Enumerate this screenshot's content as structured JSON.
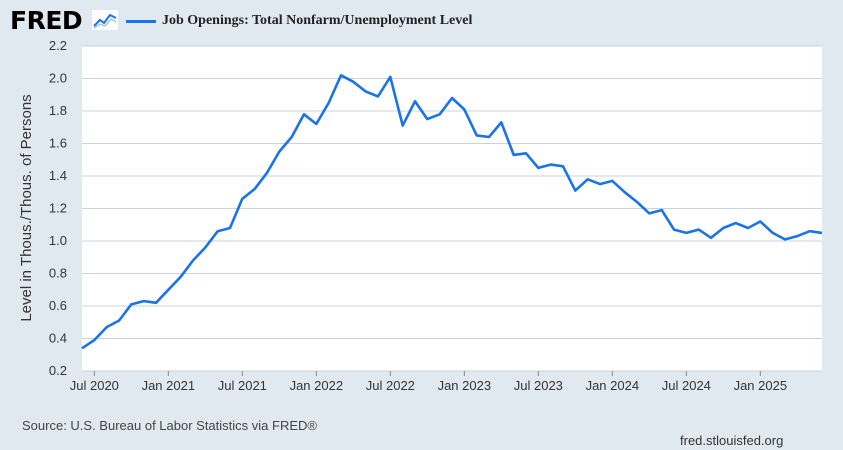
{
  "header": {
    "logo_text": "FRED",
    "logo_icon": "line-chart-icon",
    "legend_color": "#1a73e8"
  },
  "footer": {
    "source": "Source: U.S. Bureau of Labor Statistics via FRED®",
    "url": "fred.stlouisfed.org"
  },
  "chart_data": {
    "type": "line",
    "series": [
      {
        "name": "Job Openings: Total Nonfarm/Unemployment Level",
        "x": [
          "2020-06",
          "2020-07",
          "2020-08",
          "2020-09",
          "2020-10",
          "2020-11",
          "2020-12",
          "2021-01",
          "2021-02",
          "2021-03",
          "2021-04",
          "2021-05",
          "2021-06",
          "2021-07",
          "2021-08",
          "2021-09",
          "2021-10",
          "2021-11",
          "2021-12",
          "2022-01",
          "2022-02",
          "2022-03",
          "2022-04",
          "2022-05",
          "2022-06",
          "2022-07",
          "2022-08",
          "2022-09",
          "2022-10",
          "2022-11",
          "2022-12",
          "2023-01",
          "2023-02",
          "2023-03",
          "2023-04",
          "2023-05",
          "2023-06",
          "2023-07",
          "2023-08",
          "2023-09",
          "2023-10",
          "2023-11",
          "2023-12",
          "2024-01",
          "2024-02",
          "2024-03",
          "2024-04",
          "2024-05",
          "2024-06",
          "2024-07",
          "2024-08",
          "2024-09",
          "2024-10",
          "2024-11",
          "2024-12",
          "2025-01",
          "2025-02",
          "2025-03",
          "2025-04",
          "2025-05",
          "2025-06"
        ],
        "values": [
          0.34,
          0.39,
          0.47,
          0.51,
          0.61,
          0.63,
          0.62,
          0.7,
          0.78,
          0.88,
          0.96,
          1.06,
          1.08,
          1.26,
          1.32,
          1.42,
          1.55,
          1.64,
          1.78,
          1.72,
          1.85,
          2.02,
          1.98,
          1.92,
          1.89,
          2.01,
          1.71,
          1.86,
          1.75,
          1.78,
          1.88,
          1.81,
          1.65,
          1.64,
          1.73,
          1.53,
          1.54,
          1.45,
          1.47,
          1.46,
          1.31,
          1.38,
          1.35,
          1.37,
          1.3,
          1.24,
          1.17,
          1.19,
          1.07,
          1.05,
          1.07,
          1.02,
          1.08,
          1.11,
          1.08,
          1.12,
          1.05,
          1.01,
          1.03,
          1.06,
          1.05
        ]
      }
    ],
    "x_ticks": [
      "Jul 2020",
      "Jan 2021",
      "Jul 2021",
      "Jan 2022",
      "Jul 2022",
      "Jan 2023",
      "Jul 2023",
      "Jan 2024",
      "Jul 2024",
      "Jan 2025"
    ],
    "x_tick_months": [
      "2020-07",
      "2021-01",
      "2021-07",
      "2022-01",
      "2022-07",
      "2023-01",
      "2023-07",
      "2024-01",
      "2024-07",
      "2025-01"
    ],
    "y_ticks": [
      "0.2",
      "0.4",
      "0.6",
      "0.8",
      "1.0",
      "1.2",
      "1.4",
      "1.6",
      "1.8",
      "2.0",
      "2.2"
    ],
    "xlim": [
      "2020-06",
      "2025-06"
    ],
    "ylim": [
      0.2,
      2.2
    ],
    "ylabel": "Level in Thous./Thous. of Persons",
    "grid": true,
    "line_color": "#1a73e8",
    "plot_bg": "#ffffff",
    "grid_color": "#c9d3dc"
  }
}
